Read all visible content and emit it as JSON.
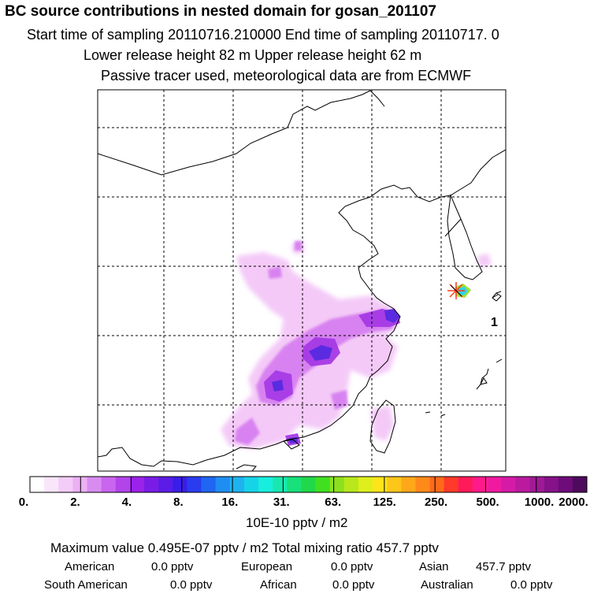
{
  "header": {
    "title": "BC  source contributions in nested domain for gosan_201107",
    "line1": "Start time of sampling 20110716.210000      End time of sampling 20110717.      0",
    "line2": "Lower release height   82 m          Upper release height   62 m",
    "line3": "Passive tracer used, meteorological data are from ECMWF"
  },
  "map": {
    "receptor_label": "1",
    "colors": {
      "coast": "#000000",
      "grid": "#000000",
      "plume_light": "#f3c4f7",
      "plume_mid": "#d67ff0",
      "plume_strong": "#a63ae6",
      "plume_core": "#5a2be0",
      "receptor_cyan": "#2cd4e8",
      "receptor_green": "#9be23a",
      "receptor_marker": "#ff3a1a"
    }
  },
  "colorbar": {
    "colors": [
      "#ffffff",
      "#f9e6fb",
      "#f3ccf7",
      "#ecb0f4",
      "#d98cf0",
      "#c965ee",
      "#b344ea",
      "#9b22e8",
      "#7a1ce6",
      "#5a1ce6",
      "#3a1ee8",
      "#2a3cf0",
      "#1f66f2",
      "#1f8ef2",
      "#1fb2f0",
      "#16d4e8",
      "#18eedd",
      "#18e8b0",
      "#18e07a",
      "#20d84a",
      "#40e020",
      "#8ce01e",
      "#b8e81c",
      "#e0ee1c",
      "#ffe41a",
      "#ffc61a",
      "#ffa81a",
      "#ff8a1a",
      "#ff6a1a",
      "#ff3a2a",
      "#ff1a5a",
      "#ff1a8a",
      "#f01aa0",
      "#d61aa8",
      "#bb1aa0",
      "#a01a96",
      "#86128a",
      "#6e0c7a",
      "#4e0a5c"
    ],
    "labels": [
      "0.",
      "2.",
      "4.",
      "8.",
      "16.",
      "31.",
      "63.",
      "125.",
      "250.",
      "500.",
      "1000.",
      "2000."
    ],
    "unit": "10E-10 pptv / m2"
  },
  "summary": {
    "max_line": "Maximum value  0.495E-07 pptv / m2      Total mixing ratio      457.7 pptv",
    "regions_row1": [
      {
        "name": "American",
        "value": "0.0 pptv"
      },
      {
        "name": "European",
        "value": "0.0 pptv"
      },
      {
        "name": "Asian",
        "value": "457.7 pptv"
      }
    ],
    "regions_row2": [
      {
        "name": "South American",
        "value": "0.0 pptv"
      },
      {
        "name": "African",
        "value": "0.0 pptv"
      },
      {
        "name": "Australian",
        "value": "0.0 pptv"
      }
    ]
  }
}
